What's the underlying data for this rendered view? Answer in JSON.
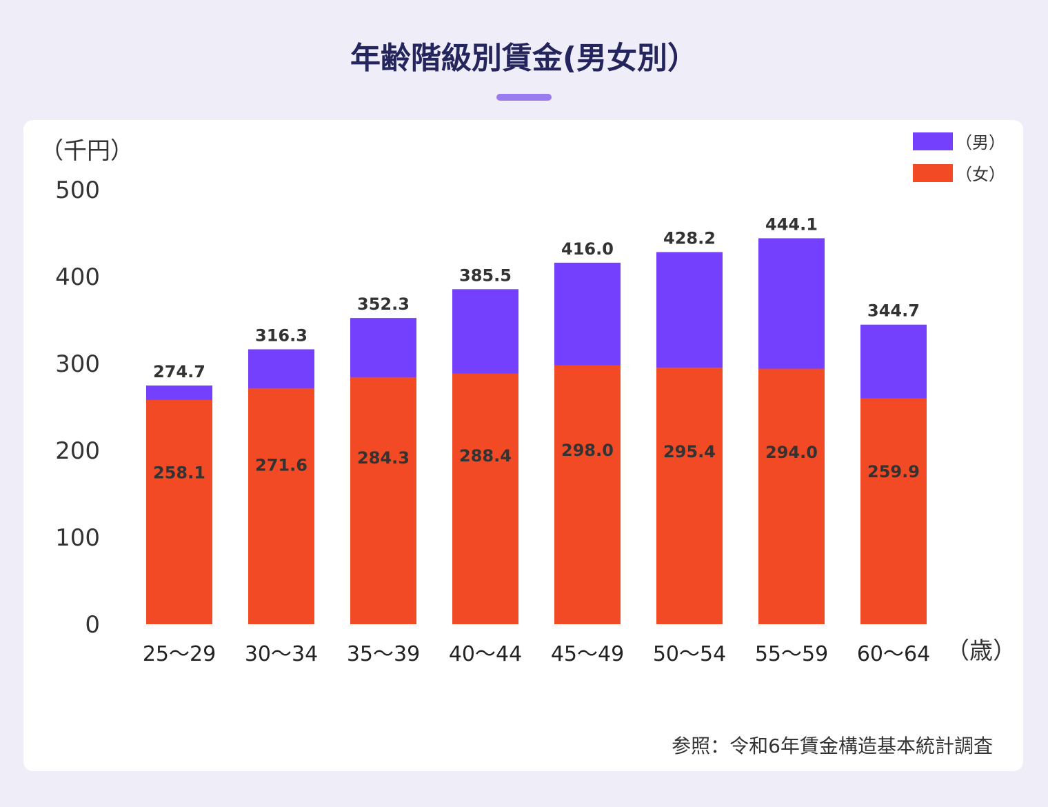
{
  "chart_data": {
    "type": "bar",
    "title": "年齢階級別賃金(男女別）",
    "ylabel": "（千円）",
    "xlabel": "（歳）",
    "categories": [
      "25〜29",
      "30〜34",
      "35〜39",
      "40〜44",
      "45〜49",
      "50〜54",
      "55〜59",
      "60〜64"
    ],
    "series": [
      {
        "name": "（男）",
        "color": "#7540fd",
        "values": [
          274.7,
          316.3,
          352.3,
          385.5,
          416.0,
          428.2,
          444.1,
          344.7
        ]
      },
      {
        "name": "（女）",
        "color": "#f24a25",
        "values": [
          258.1,
          271.6,
          284.3,
          288.4,
          298.0,
          295.4,
          294.0,
          259.9
        ]
      }
    ],
    "yticks": [
      0,
      100,
      200,
      300,
      400,
      500
    ],
    "ylim": [
      0,
      500
    ],
    "legend": "top-right",
    "grid": false,
    "source": "参照：令和6年賃金構造基本統計調査"
  }
}
